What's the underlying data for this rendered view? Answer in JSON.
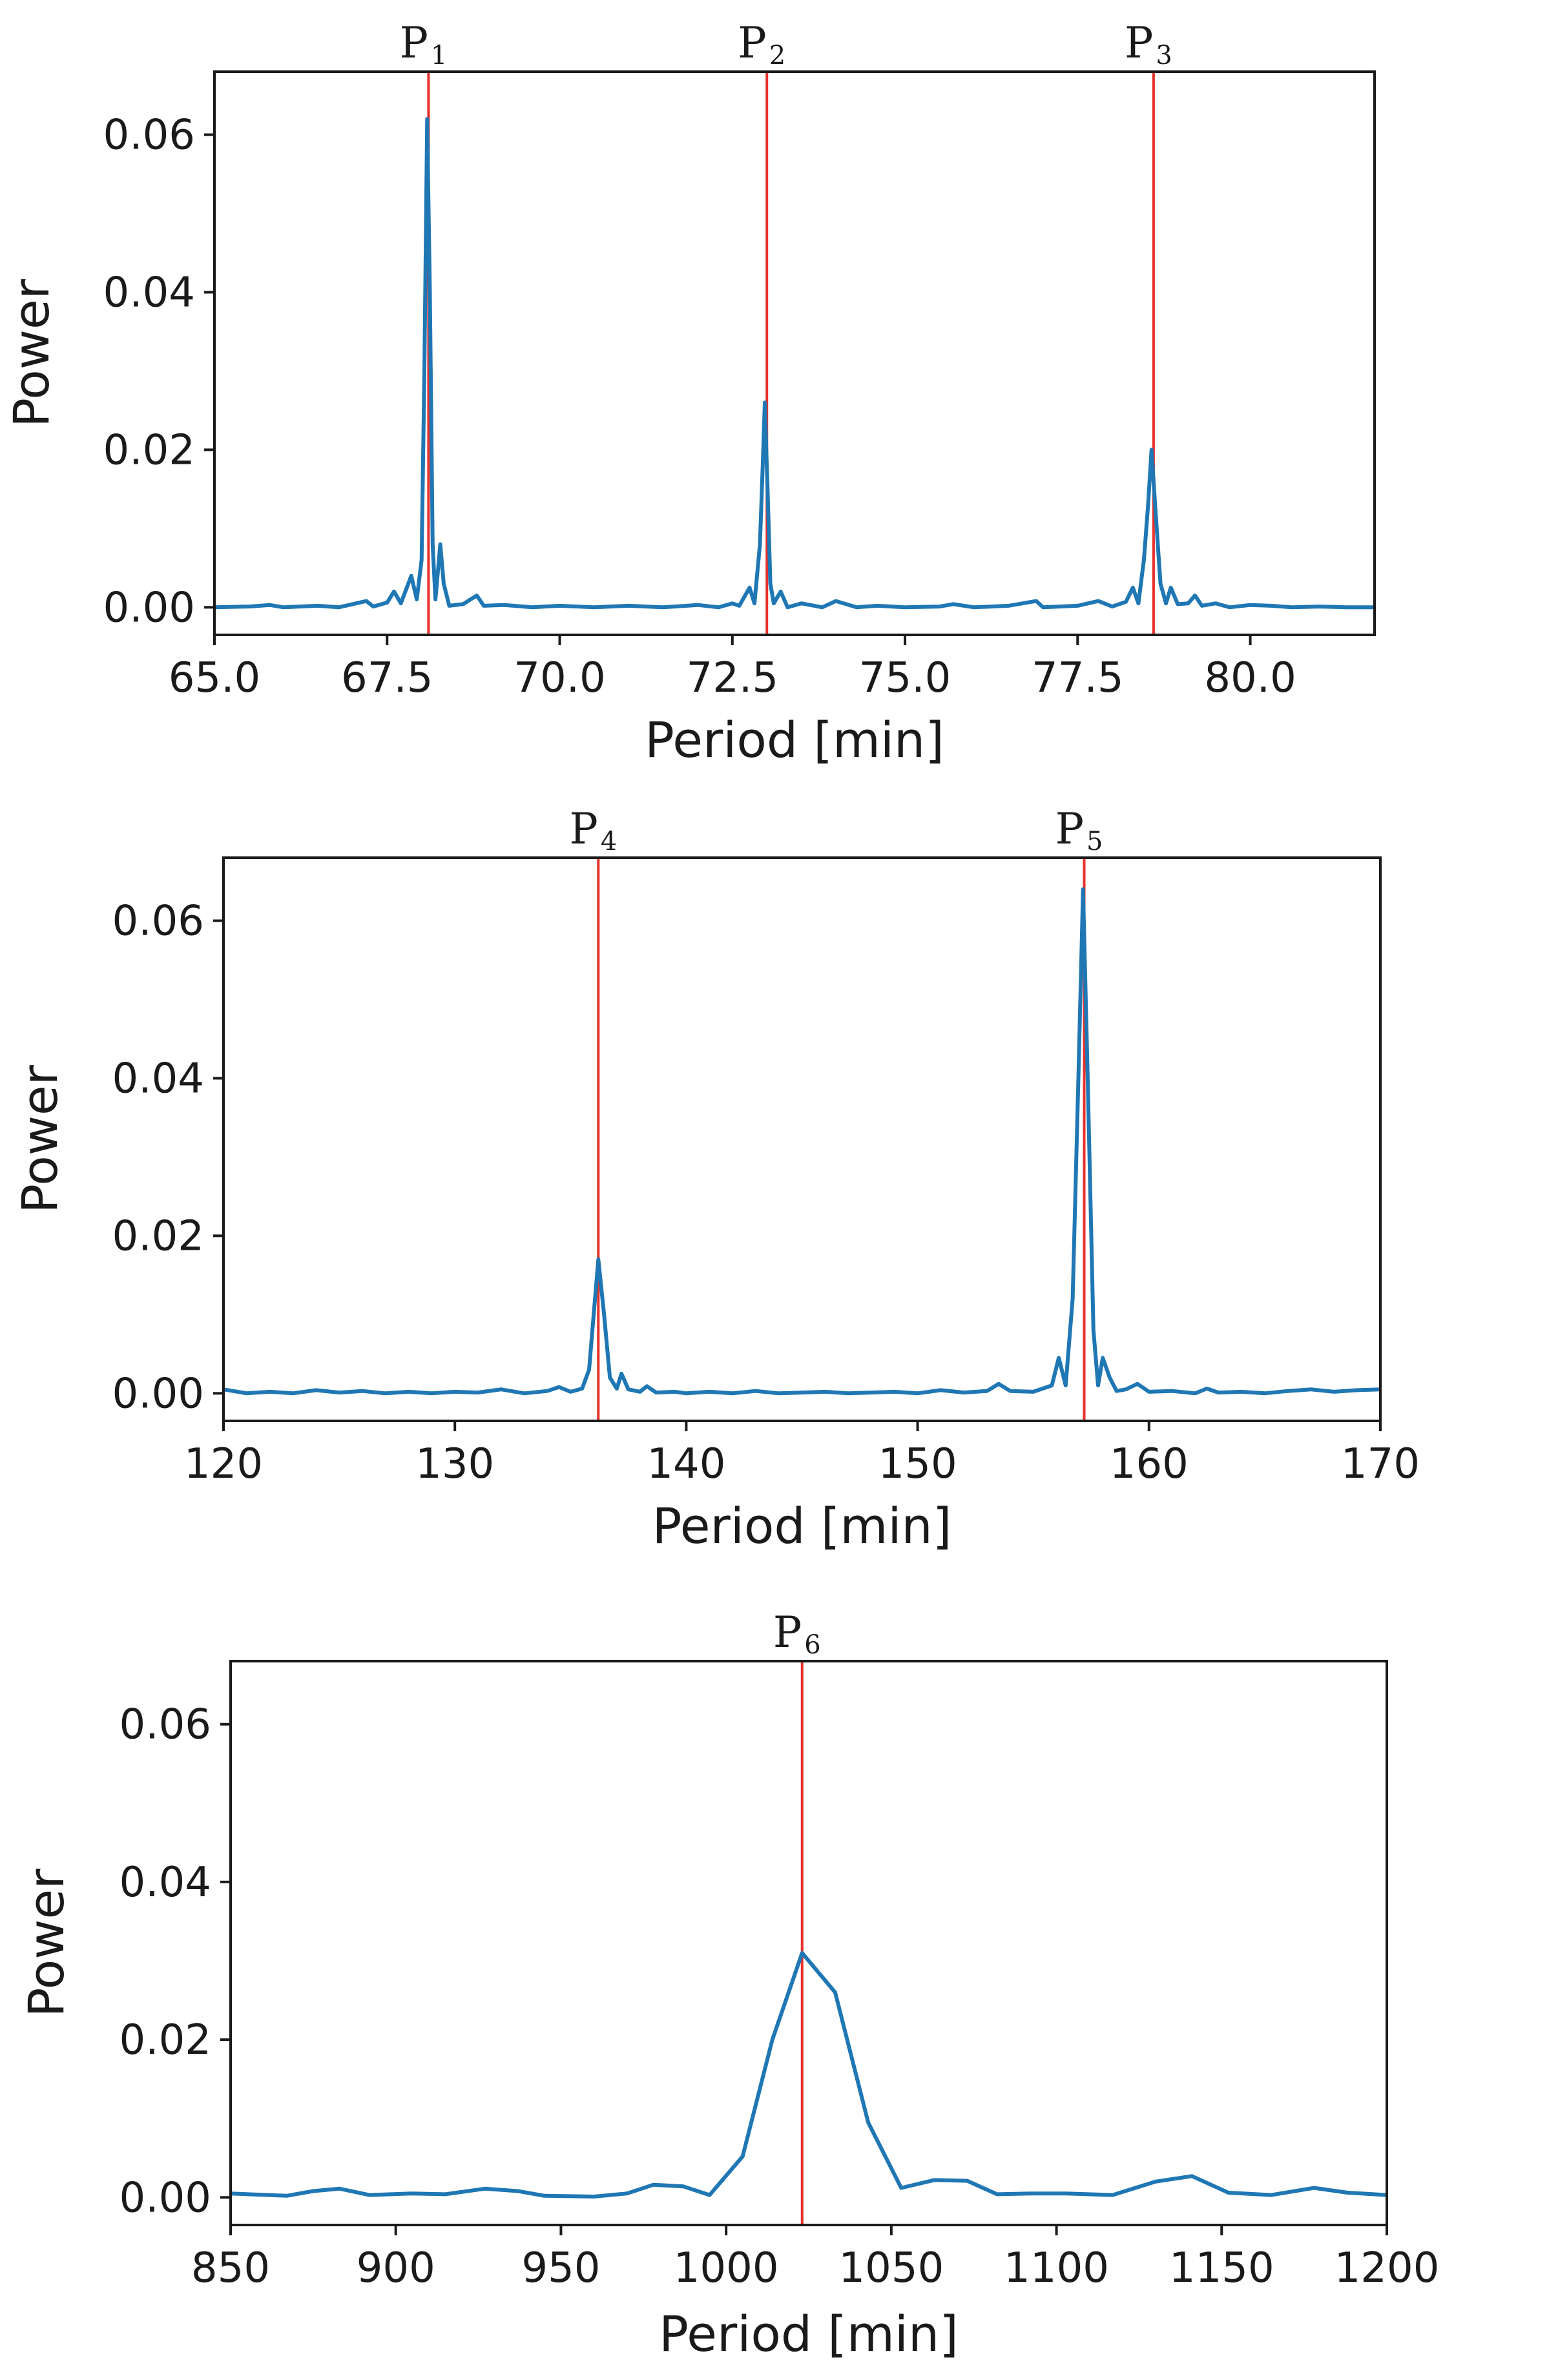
{
  "chart_data": [
    {
      "type": "line",
      "xlabel": "Period [min]",
      "ylabel": "Power",
      "xlim": [
        65.0,
        81.8
      ],
      "ylim": [
        -0.0035,
        0.068
      ],
      "xticks": [
        65.0,
        67.5,
        70.0,
        72.5,
        75.0,
        77.5,
        80.0
      ],
      "xtick_labels": [
        "65.0",
        "67.5",
        "70.0",
        "72.5",
        "75.0",
        "77.5",
        "80.0"
      ],
      "yticks": [
        0.0,
        0.02,
        0.04,
        0.06
      ],
      "ytick_labels": [
        "0.00",
        "0.02",
        "0.04",
        "0.06"
      ],
      "grid": false,
      "markers": [
        {
          "label": "P",
          "sub": "1",
          "x": 68.1
        },
        {
          "label": "P",
          "sub": "2",
          "x": 73.0
        },
        {
          "label": "P",
          "sub": "3",
          "x": 78.6
        }
      ],
      "series": [
        {
          "color": "#1f77b4",
          "points": [
            [
              65.0,
              0.0
            ],
            [
              65.5,
              0.0001
            ],
            [
              65.8,
              0.0003
            ],
            [
              66.0,
              0.0
            ],
            [
              66.5,
              0.0002
            ],
            [
              66.8,
              0.0
            ],
            [
              67.0,
              0.0004
            ],
            [
              67.2,
              0.0008
            ],
            [
              67.3,
              0.0001
            ],
            [
              67.5,
              0.0006
            ],
            [
              67.6,
              0.002
            ],
            [
              67.7,
              0.0005
            ],
            [
              67.85,
              0.004
            ],
            [
              67.93,
              0.001
            ],
            [
              68.0,
              0.006
            ],
            [
              68.04,
              0.03
            ],
            [
              68.08,
              0.062
            ],
            [
              68.12,
              0.04
            ],
            [
              68.16,
              0.008
            ],
            [
              68.2,
              0.001
            ],
            [
              68.27,
              0.008
            ],
            [
              68.32,
              0.003
            ],
            [
              68.4,
              0.0002
            ],
            [
              68.6,
              0.0004
            ],
            [
              68.8,
              0.0015
            ],
            [
              68.9,
              0.0002
            ],
            [
              69.2,
              0.0003
            ],
            [
              69.6,
              0.0
            ],
            [
              70.0,
              0.0002
            ],
            [
              70.5,
              0.0
            ],
            [
              71.0,
              0.0002
            ],
            [
              71.5,
              0.0
            ],
            [
              72.0,
              0.0003
            ],
            [
              72.3,
              0.0
            ],
            [
              72.5,
              0.0005
            ],
            [
              72.6,
              0.0002
            ],
            [
              72.75,
              0.0025
            ],
            [
              72.82,
              0.0005
            ],
            [
              72.9,
              0.008
            ],
            [
              72.94,
              0.018
            ],
            [
              72.97,
              0.026
            ],
            [
              73.01,
              0.015
            ],
            [
              73.05,
              0.003
            ],
            [
              73.1,
              0.0005
            ],
            [
              73.2,
              0.002
            ],
            [
              73.3,
              0.0
            ],
            [
              73.5,
              0.0005
            ],
            [
              73.8,
              0.0
            ],
            [
              74.0,
              0.0008
            ],
            [
              74.3,
              0.0
            ],
            [
              74.6,
              0.0002
            ],
            [
              75.0,
              0.0
            ],
            [
              75.5,
              0.0001
            ],
            [
              75.7,
              0.0004
            ],
            [
              76.0,
              0.0
            ],
            [
              76.5,
              0.0002
            ],
            [
              76.9,
              0.0008
            ],
            [
              77.0,
              0.0
            ],
            [
              77.5,
              0.0002
            ],
            [
              77.8,
              0.0008
            ],
            [
              78.0,
              0.0001
            ],
            [
              78.2,
              0.0007
            ],
            [
              78.3,
              0.0025
            ],
            [
              78.38,
              0.0005
            ],
            [
              78.46,
              0.006
            ],
            [
              78.52,
              0.013
            ],
            [
              78.57,
              0.02
            ],
            [
              78.63,
              0.012
            ],
            [
              78.7,
              0.003
            ],
            [
              78.78,
              0.0005
            ],
            [
              78.85,
              0.0025
            ],
            [
              78.95,
              0.0004
            ],
            [
              79.1,
              0.0005
            ],
            [
              79.2,
              0.0015
            ],
            [
              79.3,
              0.0002
            ],
            [
              79.5,
              0.0005
            ],
            [
              79.7,
              0.0
            ],
            [
              80.0,
              0.0003
            ],
            [
              80.3,
              0.0002
            ],
            [
              80.6,
              0.0
            ],
            [
              81.0,
              0.0001
            ],
            [
              81.4,
              0.0
            ],
            [
              81.8,
              0.0
            ]
          ]
        }
      ]
    },
    {
      "type": "line",
      "xlabel": "Period [min]",
      "ylabel": "Power",
      "xlim": [
        120,
        170
      ],
      "ylim": [
        -0.0035,
        0.068
      ],
      "xticks": [
        120,
        130,
        140,
        150,
        160,
        170
      ],
      "xtick_labels": [
        "120",
        "130",
        "140",
        "150",
        "160",
        "170"
      ],
      "yticks": [
        0.0,
        0.02,
        0.04,
        0.06
      ],
      "ytick_labels": [
        "0.00",
        "0.02",
        "0.04",
        "0.06"
      ],
      "grid": false,
      "markers": [
        {
          "label": "P",
          "sub": "4",
          "x": 136.2
        },
        {
          "label": "P",
          "sub": "5",
          "x": 157.2
        }
      ],
      "series": [
        {
          "color": "#1f77b4",
          "points": [
            [
              120,
              0.0005
            ],
            [
              121,
              0.0
            ],
            [
              122,
              0.0002
            ],
            [
              123,
              0.0
            ],
            [
              124,
              0.0004
            ],
            [
              125,
              0.0001
            ],
            [
              126,
              0.0003
            ],
            [
              127,
              0.0
            ],
            [
              128,
              0.0002
            ],
            [
              129,
              0.0
            ],
            [
              130,
              0.0002
            ],
            [
              131,
              0.0001
            ],
            [
              132,
              0.0005
            ],
            [
              133,
              0.0
            ],
            [
              134,
              0.0003
            ],
            [
              134.5,
              0.0008
            ],
            [
              135,
              0.0002
            ],
            [
              135.5,
              0.0006
            ],
            [
              135.8,
              0.003
            ],
            [
              136.0,
              0.01
            ],
            [
              136.2,
              0.017
            ],
            [
              136.45,
              0.01
            ],
            [
              136.7,
              0.002
            ],
            [
              137.0,
              0.0006
            ],
            [
              137.2,
              0.0025
            ],
            [
              137.5,
              0.0005
            ],
            [
              138,
              0.0002
            ],
            [
              138.3,
              0.0009
            ],
            [
              138.7,
              0.0001
            ],
            [
              139.5,
              0.0002
            ],
            [
              140,
              0.0
            ],
            [
              141,
              0.0002
            ],
            [
              142,
              0.0
            ],
            [
              143,
              0.0003
            ],
            [
              144,
              0.0
            ],
            [
              145,
              0.0001
            ],
            [
              146,
              0.0002
            ],
            [
              147,
              0.0
            ],
            [
              148,
              0.0001
            ],
            [
              149,
              0.0002
            ],
            [
              150,
              0.0
            ],
            [
              151,
              0.0004
            ],
            [
              152,
              0.0001
            ],
            [
              153,
              0.0003
            ],
            [
              153.5,
              0.0012
            ],
            [
              154,
              0.0003
            ],
            [
              155,
              0.0002
            ],
            [
              155.8,
              0.001
            ],
            [
              156.1,
              0.0045
            ],
            [
              156.4,
              0.001
            ],
            [
              156.7,
              0.012
            ],
            [
              156.95,
              0.04
            ],
            [
              157.15,
              0.064
            ],
            [
              157.35,
              0.04
            ],
            [
              157.6,
              0.008
            ],
            [
              157.8,
              0.001
            ],
            [
              158.0,
              0.0045
            ],
            [
              158.3,
              0.002
            ],
            [
              158.6,
              0.0003
            ],
            [
              159.0,
              0.0005
            ],
            [
              159.5,
              0.0012
            ],
            [
              160,
              0.0002
            ],
            [
              161,
              0.0003
            ],
            [
              162,
              0.0
            ],
            [
              162.5,
              0.0006
            ],
            [
              163,
              0.0001
            ],
            [
              164,
              0.0002
            ],
            [
              165,
              0.0
            ],
            [
              166,
              0.0003
            ],
            [
              167,
              0.0005
            ],
            [
              168,
              0.0002
            ],
            [
              169,
              0.0004
            ],
            [
              170,
              0.0005
            ]
          ]
        }
      ]
    },
    {
      "type": "line",
      "xlabel": "Period [min]",
      "ylabel": "Power",
      "xlim": [
        850,
        1200
      ],
      "ylim": [
        -0.0035,
        0.068
      ],
      "xticks": [
        850,
        900,
        950,
        1000,
        1050,
        1100,
        1150,
        1200
      ],
      "xtick_labels": [
        "850",
        "900",
        "950",
        "1000",
        "1050",
        "1100",
        "1150",
        "1200"
      ],
      "yticks": [
        0.0,
        0.02,
        0.04,
        0.06
      ],
      "ytick_labels": [
        "0.00",
        "0.02",
        "0.04",
        "0.06"
      ],
      "grid": false,
      "markers": [
        {
          "label": "P",
          "sub": "6",
          "x": 1023
        }
      ],
      "series": [
        {
          "color": "#1f77b4",
          "points": [
            [
              850,
              0.0005
            ],
            [
              867,
              0.0002
            ],
            [
              875,
              0.0008
            ],
            [
              883,
              0.0011
            ],
            [
              892,
              0.0003
            ],
            [
              905,
              0.0005
            ],
            [
              915,
              0.0004
            ],
            [
              927,
              0.0011
            ],
            [
              937,
              0.0008
            ],
            [
              945,
              0.0002
            ],
            [
              960,
              0.0001
            ],
            [
              970,
              0.0005
            ],
            [
              978,
              0.0016
            ],
            [
              987,
              0.0014
            ],
            [
              995,
              0.0003
            ],
            [
              1005,
              0.0052
            ],
            [
              1014,
              0.02
            ],
            [
              1023,
              0.031
            ],
            [
              1033,
              0.026
            ],
            [
              1043,
              0.0095
            ],
            [
              1053,
              0.0012
            ],
            [
              1063,
              0.0022
            ],
            [
              1073,
              0.0021
            ],
            [
              1082,
              0.0004
            ],
            [
              1092,
              0.0005
            ],
            [
              1103,
              0.0005
            ],
            [
              1117,
              0.0003
            ],
            [
              1130,
              0.002
            ],
            [
              1141,
              0.0027
            ],
            [
              1152,
              0.0006
            ],
            [
              1165,
              0.0003
            ],
            [
              1178,
              0.0012
            ],
            [
              1188,
              0.0006
            ],
            [
              1200,
              0.0003
            ]
          ]
        }
      ]
    }
  ]
}
